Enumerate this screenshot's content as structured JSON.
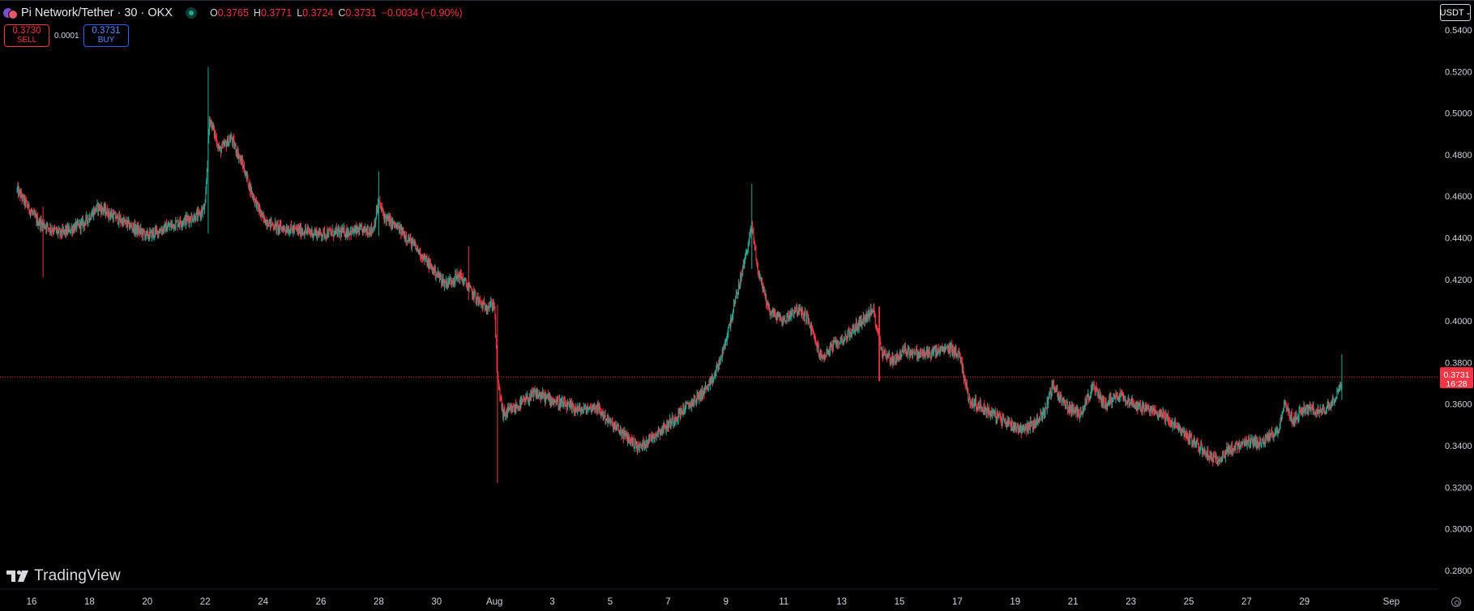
{
  "header": {
    "title": "Pi Network/Tether · 30 · OKX",
    "ohlc": [
      {
        "k": "O",
        "v": "0.3765"
      },
      {
        "k": "H",
        "v": "0.3771"
      },
      {
        "k": "L",
        "v": "0.3724"
      },
      {
        "k": "C",
        "v": "0.3731"
      },
      {
        "k": "",
        "v": "−0.0034 (−0.90%)"
      }
    ]
  },
  "trade": {
    "sell_price": "0.3730",
    "sell_label": "SELL",
    "spread": "0.0001",
    "buy_price": "0.3731",
    "buy_label": "BUY"
  },
  "currency_menu": {
    "label": "USDT",
    "caret": "⌄"
  },
  "price_tag": {
    "price": "0.3731",
    "countdown": "16:28"
  },
  "watermark": "TradingView",
  "colors": {
    "up": "#22ab94",
    "down": "#f23645",
    "background": "#000000",
    "price_line": "#f23645",
    "buy_accent": "#2962ff"
  },
  "chart_data": {
    "type": "candlestick",
    "title": "Pi Network/Tether · 30 · OKX",
    "y_ticks": [
      "0.5400",
      "0.5200",
      "0.5000",
      "0.4800",
      "0.4600",
      "0.4400",
      "0.4200",
      "0.4000",
      "0.3800",
      "0.3600",
      "0.3400",
      "0.3200",
      "0.3000",
      "0.2800"
    ],
    "ylim": [
      0.27,
      0.55
    ],
    "x_ticks": [
      "16",
      "18",
      "20",
      "22",
      "24",
      "26",
      "28",
      "30",
      "Aug",
      "3",
      "5",
      "7",
      "9",
      "11",
      "13",
      "15",
      "17",
      "19",
      "21",
      "23",
      "25",
      "27",
      "29",
      "Sep"
    ],
    "x_tick_days": [
      16,
      18,
      20,
      22,
      24,
      26,
      28,
      30,
      32,
      34,
      36,
      38,
      40,
      42,
      44,
      46,
      48,
      50,
      52,
      54,
      56,
      58,
      60,
      63
    ],
    "x_range_days": [
      15.5,
      63.2
    ],
    "current_price": 0.3731,
    "price_path": [
      [
        15.5,
        0.463
      ],
      [
        16.2,
        0.448
      ],
      [
        17.0,
        0.442
      ],
      [
        17.8,
        0.447
      ],
      [
        18.3,
        0.455
      ],
      [
        19.0,
        0.449
      ],
      [
        20.0,
        0.441
      ],
      [
        21.0,
        0.447
      ],
      [
        21.8,
        0.451
      ],
      [
        22.0,
        0.455
      ],
      [
        22.15,
        0.498
      ],
      [
        22.5,
        0.482
      ],
      [
        22.9,
        0.488
      ],
      [
        23.3,
        0.475
      ],
      [
        23.6,
        0.462
      ],
      [
        24.0,
        0.449
      ],
      [
        24.5,
        0.445
      ],
      [
        25.0,
        0.444
      ],
      [
        26.0,
        0.442
      ],
      [
        27.0,
        0.443
      ],
      [
        27.8,
        0.444
      ],
      [
        28.0,
        0.457
      ],
      [
        28.2,
        0.45
      ],
      [
        28.8,
        0.443
      ],
      [
        29.3,
        0.435
      ],
      [
        29.8,
        0.426
      ],
      [
        30.3,
        0.418
      ],
      [
        30.8,
        0.422
      ],
      [
        31.2,
        0.414
      ],
      [
        31.6,
        0.407
      ],
      [
        32.0,
        0.408
      ],
      [
        32.1,
        0.372
      ],
      [
        32.3,
        0.355
      ],
      [
        32.7,
        0.358
      ],
      [
        33.0,
        0.361
      ],
      [
        33.4,
        0.365
      ],
      [
        34.0,
        0.362
      ],
      [
        34.5,
        0.359
      ],
      [
        35.0,
        0.357
      ],
      [
        35.5,
        0.359
      ],
      [
        36.0,
        0.351
      ],
      [
        36.5,
        0.345
      ],
      [
        37.0,
        0.339
      ],
      [
        37.5,
        0.345
      ],
      [
        38.0,
        0.35
      ],
      [
        38.5,
        0.357
      ],
      [
        39.0,
        0.363
      ],
      [
        39.5,
        0.37
      ],
      [
        39.9,
        0.385
      ],
      [
        40.3,
        0.408
      ],
      [
        40.6,
        0.426
      ],
      [
        40.9,
        0.446
      ],
      [
        41.1,
        0.425
      ],
      [
        41.5,
        0.405
      ],
      [
        42.0,
        0.4
      ],
      [
        42.4,
        0.406
      ],
      [
        42.8,
        0.402
      ],
      [
        43.3,
        0.382
      ],
      [
        43.7,
        0.388
      ],
      [
        44.2,
        0.393
      ],
      [
        44.7,
        0.4
      ],
      [
        45.1,
        0.405
      ],
      [
        45.4,
        0.385
      ],
      [
        45.8,
        0.381
      ],
      [
        46.2,
        0.386
      ],
      [
        46.7,
        0.384
      ],
      [
        47.2,
        0.385
      ],
      [
        47.8,
        0.387
      ],
      [
        48.1,
        0.383
      ],
      [
        48.4,
        0.362
      ],
      [
        48.9,
        0.358
      ],
      [
        49.5,
        0.353
      ],
      [
        50.2,
        0.348
      ],
      [
        50.6,
        0.35
      ],
      [
        51.0,
        0.356
      ],
      [
        51.3,
        0.369
      ],
      [
        51.7,
        0.36
      ],
      [
        52.2,
        0.355
      ],
      [
        52.7,
        0.368
      ],
      [
        53.1,
        0.36
      ],
      [
        53.6,
        0.365
      ],
      [
        54.1,
        0.36
      ],
      [
        54.6,
        0.357
      ],
      [
        55.0,
        0.356
      ],
      [
        55.5,
        0.35
      ],
      [
        56.0,
        0.344
      ],
      [
        56.4,
        0.339
      ],
      [
        56.9,
        0.333
      ],
      [
        57.4,
        0.338
      ],
      [
        58.0,
        0.341
      ],
      [
        58.6,
        0.342
      ],
      [
        59.1,
        0.348
      ],
      [
        59.3,
        0.36
      ],
      [
        59.6,
        0.352
      ],
      [
        60.0,
        0.358
      ],
      [
        60.6,
        0.356
      ],
      [
        61.0,
        0.362
      ],
      [
        61.25,
        0.37
      ],
      [
        61.3,
        0.3731
      ]
    ],
    "notable_wicks": [
      {
        "day": 16.4,
        "high": 0.455,
        "low": 0.421
      },
      {
        "day": 22.1,
        "high": 0.522,
        "low": 0.442
      },
      {
        "day": 28.0,
        "high": 0.472,
        "low": 0.441
      },
      {
        "day": 31.1,
        "high": 0.436,
        "low": 0.41
      },
      {
        "day": 32.1,
        "high": 0.408,
        "low": 0.322
      },
      {
        "day": 40.9,
        "high": 0.466,
        "low": 0.425
      },
      {
        "day": 45.3,
        "high": 0.407,
        "low": 0.371
      },
      {
        "day": 61.3,
        "high": 0.384,
        "low": 0.362
      }
    ],
    "grid": false,
    "legend": "none"
  }
}
